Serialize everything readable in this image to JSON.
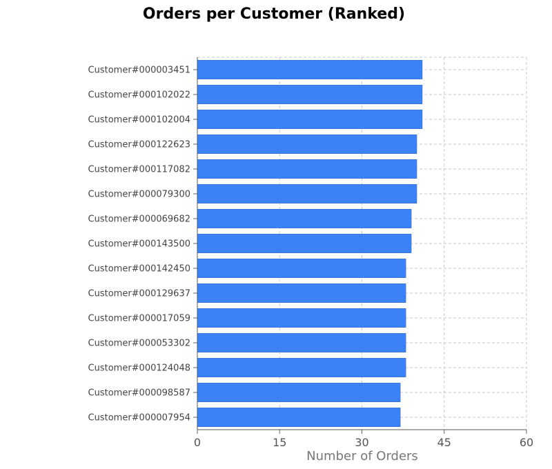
{
  "chart_data": {
    "type": "bar",
    "orientation": "horizontal",
    "title": "Orders per Customer (Ranked)",
    "xlabel": "Number of Orders",
    "ylabel": "",
    "xlim": [
      0,
      60
    ],
    "xticks": [
      0,
      15,
      30,
      45,
      60
    ],
    "grid": true,
    "bar_color": "#3b82f6",
    "categories": [
      "Customer#000003451",
      "Customer#000102022",
      "Customer#000102004",
      "Customer#000122623",
      "Customer#000117082",
      "Customer#000079300",
      "Customer#000069682",
      "Customer#000143500",
      "Customer#000142450",
      "Customer#000129637",
      "Customer#000017059",
      "Customer#000053302",
      "Customer#000124048",
      "Customer#000098587",
      "Customer#000007954"
    ],
    "values": [
      41,
      41,
      41,
      40,
      40,
      40,
      39,
      39,
      38,
      38,
      38,
      38,
      38,
      37,
      37
    ]
  }
}
